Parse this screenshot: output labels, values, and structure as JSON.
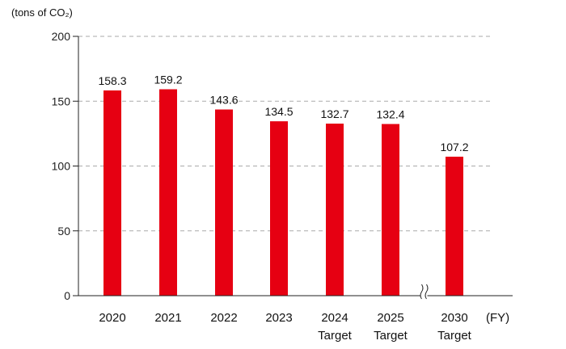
{
  "chart_data": {
    "type": "bar",
    "title": "",
    "ylabel": "(tons of CO₂)",
    "xlabel": "(FY)",
    "ylim": [
      0,
      200
    ],
    "yticks": [
      0,
      50,
      100,
      150,
      200
    ],
    "grid": true,
    "axis_break_before_index": 6,
    "categories": [
      [
        "2020"
      ],
      [
        "2021"
      ],
      [
        "2022"
      ],
      [
        "2023"
      ],
      [
        "2024",
        "Target"
      ],
      [
        "2025",
        "Target"
      ],
      [
        "2030",
        "Target"
      ]
    ],
    "values": [
      158.3,
      159.2,
      143.6,
      134.5,
      132.7,
      132.4,
      107.2
    ],
    "value_labels": [
      "158.3",
      "159.2",
      "143.6",
      "134.5",
      "132.7",
      "132.4",
      "107.2"
    ],
    "colors": {
      "bar": "#e60012",
      "grid": "#aaaaaa",
      "axis": "#222222"
    }
  }
}
